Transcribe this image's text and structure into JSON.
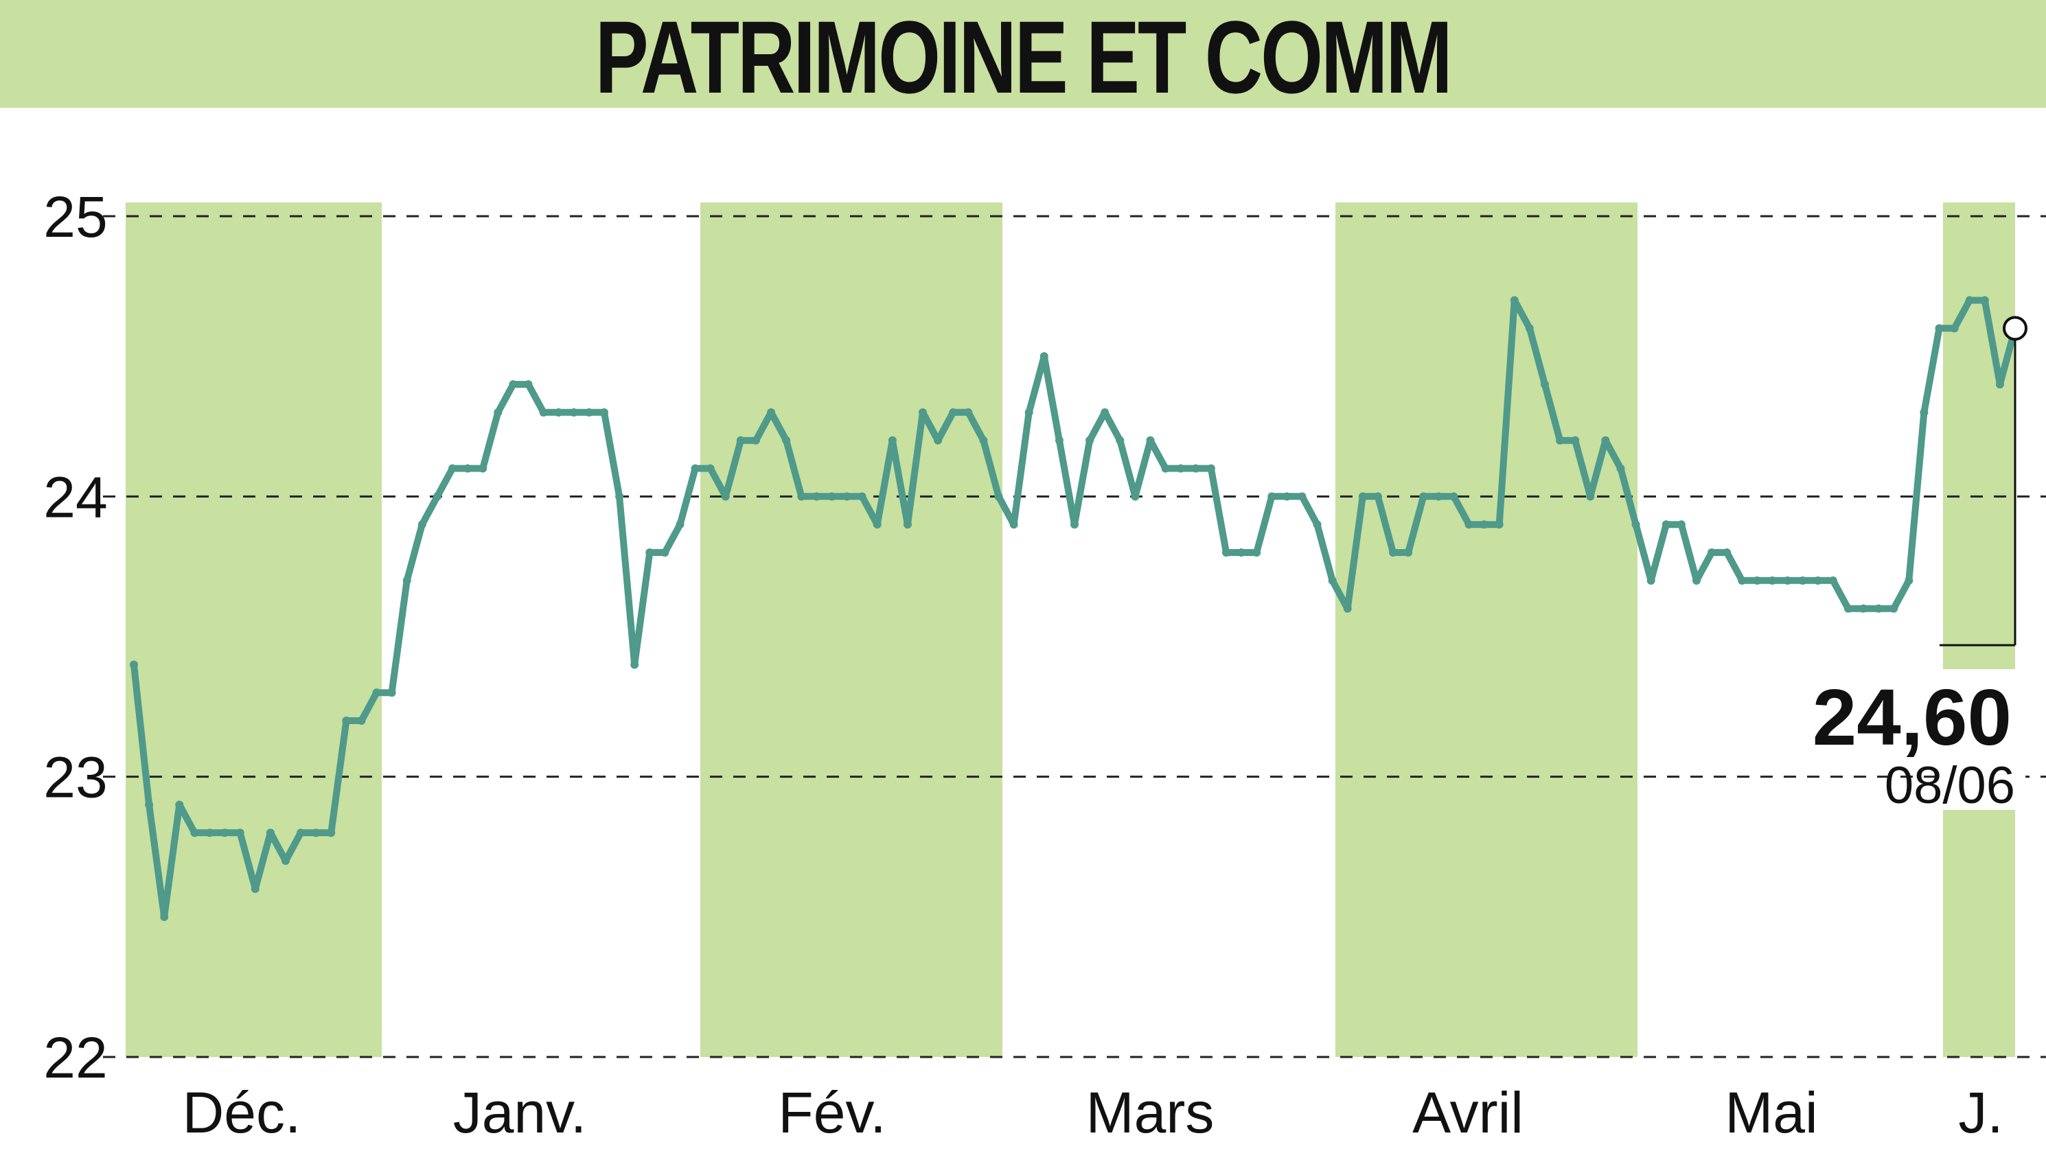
{
  "title": "PATRIMOINE ET COMM",
  "chart_data": {
    "type": "line",
    "title": "PATRIMOINE ET COMM",
    "xlabel": "",
    "ylabel": "",
    "ylim": [
      22,
      25
    ],
    "yticks": [
      "25",
      "24",
      "23",
      "22"
    ],
    "ytick_values": [
      25,
      24,
      23,
      22
    ],
    "grid": true,
    "months": [
      "Déc.",
      "Janv.",
      "Fév.",
      "Mars",
      "Avril",
      "Mai",
      "J."
    ],
    "shaded_months": [
      0,
      2,
      4,
      6
    ],
    "last_value": "24,60",
    "last_date": "08/06",
    "line_color": "#4f9a8a",
    "shade_color": "#c8e0a0",
    "series": [
      {
        "values": [
          23.4,
          22.9,
          22.5,
          22.9,
          22.8,
          22.8,
          22.8,
          22.8,
          22.6,
          22.8,
          22.7,
          22.8,
          22.8,
          22.8,
          23.2,
          23.2,
          23.3,
          23.3,
          23.7,
          23.9,
          24.0,
          24.1,
          24.1,
          24.1,
          24.3,
          24.4,
          24.4,
          24.3,
          24.3,
          24.3,
          24.3,
          24.3,
          24.0,
          23.4,
          23.8,
          23.8,
          23.9,
          24.1,
          24.1,
          24.0,
          24.2,
          24.2,
          24.3,
          24.2,
          24.0,
          24.0,
          24.0,
          24.0,
          24.0,
          23.9,
          24.2,
          23.9,
          24.3,
          24.2,
          24.3,
          24.3,
          24.2,
          24.0,
          23.9,
          24.3,
          24.5,
          24.2,
          23.9,
          24.2,
          24.3,
          24.2,
          24.0,
          24.2,
          24.1,
          24.1,
          24.1,
          24.1,
          23.8,
          23.8,
          23.8,
          24.0,
          24.0,
          24.0,
          23.9,
          23.7,
          23.6,
          24.0,
          24.0,
          23.8,
          23.8,
          24.0,
          24.0,
          24.0,
          23.9,
          23.9,
          23.9,
          24.7,
          24.6,
          24.4,
          24.2,
          24.2,
          24.0,
          24.2,
          24.1,
          23.9,
          23.7,
          23.9,
          23.9,
          23.7,
          23.8,
          23.8,
          23.7,
          23.7,
          23.7,
          23.7,
          23.7,
          23.7,
          23.7,
          23.6,
          23.6,
          23.6,
          23.6,
          23.7,
          24.3,
          24.6,
          24.6,
          24.7,
          24.7,
          24.4,
          24.6
        ]
      }
    ]
  }
}
